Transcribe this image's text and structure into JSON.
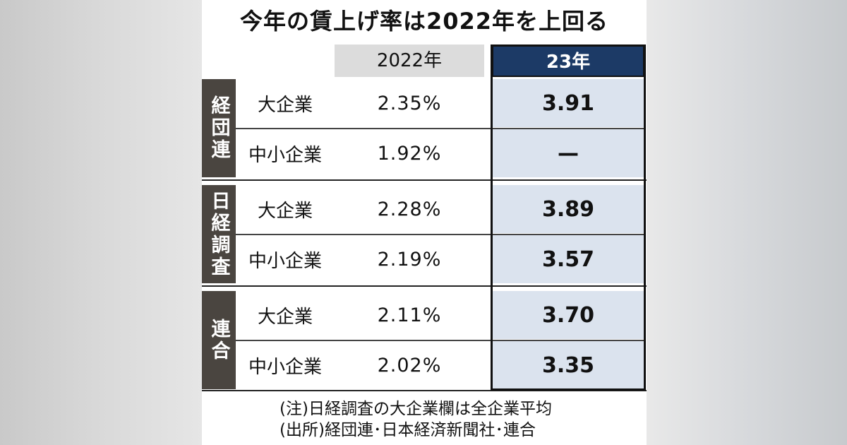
{
  "title": "今年の賃上げ率は2022年を上回る",
  "chart_data": {
    "type": "table",
    "title": "今年の賃上げ率は2022年を上回る",
    "columns": [
      "2022年",
      "23年"
    ],
    "groups": [
      {
        "name": "経団連",
        "rows": [
          {
            "category": "大企業",
            "y2022": "2.35%",
            "y23": "3.91"
          },
          {
            "category": "中小企業",
            "y2022": "1.92%",
            "y23": "—"
          }
        ]
      },
      {
        "name": "日経調査",
        "rows": [
          {
            "category": "大企業",
            "y2022": "2.28%",
            "y23": "3.89"
          },
          {
            "category": "中小企業",
            "y2022": "2.19%",
            "y23": "3.57"
          }
        ]
      },
      {
        "name": "連合",
        "rows": [
          {
            "category": "大企業",
            "y2022": "2.11%",
            "y23": "3.70"
          },
          {
            "category": "中小企業",
            "y2022": "2.02%",
            "y23": "3.35"
          }
        ]
      }
    ],
    "notes": [
      "(注)日経調査の大企業欄は全企業平均",
      "(出所)経団連･日本経済新聞社･連合"
    ]
  },
  "colors": {
    "header_23": "#1c3a66",
    "header_2022": "#dcdcdc",
    "cell_23": "#dbe3ee",
    "group_label": "#4a4540"
  }
}
